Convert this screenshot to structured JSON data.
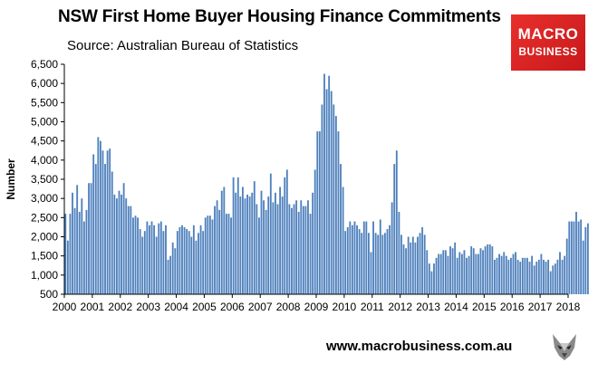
{
  "header": {
    "title": "NSW First Home Buyer Housing Finance Commitments",
    "subtitle": "Source: Australian Bureau of Statistics"
  },
  "logo": {
    "line1": "MACRO",
    "line2": "BUSINESS"
  },
  "footer": {
    "url": "www.macrobusiness.com.au"
  },
  "colors": {
    "bar": "#4f81bd",
    "bar_edge": "#3a679c",
    "logo": "#e0262a"
  },
  "chart_data": {
    "type": "bar",
    "ylabel": "Number",
    "ylim": [
      500,
      6500
    ],
    "yticks": [
      "500",
      "1,000",
      "1,500",
      "2,000",
      "2,500",
      "3,000",
      "3,500",
      "4,000",
      "4,500",
      "5,000",
      "5,500",
      "6,000",
      "6,500"
    ],
    "ytick_values": [
      500,
      1000,
      1500,
      2000,
      2500,
      3000,
      3500,
      4000,
      4500,
      5000,
      5500,
      6000,
      6500
    ],
    "xticks": [
      "2000",
      "2001",
      "2002",
      "2003",
      "2004",
      "2005",
      "2006",
      "2007",
      "2008",
      "2009",
      "2010",
      "2011",
      "2012",
      "2013",
      "2014",
      "2015",
      "2016",
      "2017",
      "2018"
    ],
    "grid": false,
    "frequency": "monthly",
    "series": [
      {
        "name": "",
        "values": [
          2600,
          1900,
          2600,
          3150,
          2750,
          3350,
          2650,
          3000,
          2400,
          2700,
          3400,
          3400,
          4150,
          3900,
          4600,
          4500,
          4250,
          3900,
          4250,
          4300,
          3700,
          3100,
          3000,
          3200,
          3100,
          3400,
          3000,
          2800,
          2800,
          2500,
          2550,
          2500,
          2200,
          2000,
          2150,
          2400,
          2300,
          2400,
          2300,
          2000,
          2350,
          2400,
          2150,
          2300,
          1400,
          1500,
          1850,
          1700,
          2150,
          2250,
          2300,
          2250,
          2200,
          2150,
          2000,
          2300,
          1900,
          2100,
          2300,
          2150,
          2500,
          2550,
          2550,
          2450,
          2800,
          2950,
          2700,
          3200,
          3300,
          2600,
          2600,
          2500,
          3550,
          3150,
          3550,
          3050,
          3300,
          3000,
          3100,
          3050,
          3150,
          3450,
          2850,
          2500,
          3200,
          2950,
          2700,
          3050,
          3650,
          2900,
          3150,
          2850,
          3300,
          3050,
          3550,
          3750,
          2850,
          2750,
          2850,
          2950,
          2650,
          2950,
          2800,
          2800,
          2950,
          2600,
          3150,
          3750,
          4750,
          4750,
          5450,
          6250,
          5850,
          6200,
          5800,
          5450,
          5150,
          4750,
          3900,
          3300,
          2150,
          2250,
          2400,
          2300,
          2400,
          2300,
          2200,
          2100,
          2400,
          2400,
          2100,
          1600,
          2400,
          2100,
          2050,
          2450,
          2050,
          2100,
          2200,
          2300,
          2900,
          3900,
          4250,
          2650,
          2050,
          1800,
          1700,
          2000,
          1850,
          2000,
          1850,
          2000,
          2100,
          2250,
          2050,
          1650,
          1300,
          1100,
          1300,
          1450,
          1550,
          1550,
          1650,
          1650,
          1500,
          1750,
          1700,
          1850,
          1450,
          1600,
          1550,
          1650,
          1450,
          1500,
          1750,
          1700,
          1550,
          1550,
          1700,
          1650,
          1750,
          1800,
          1800,
          1750,
          1400,
          1450,
          1550,
          1500,
          1600,
          1500,
          1400,
          1450,
          1550,
          1600,
          1400,
          1350,
          1450,
          1450,
          1450,
          1350,
          1500,
          1250,
          1350,
          1400,
          1550,
          1400,
          1350,
          1400,
          1100,
          1250,
          1300,
          1400,
          1600,
          1400,
          1500,
          1950,
          2400,
          2400,
          2400,
          2650,
          2400,
          2450,
          1900,
          2250,
          2350
        ]
      }
    ]
  }
}
